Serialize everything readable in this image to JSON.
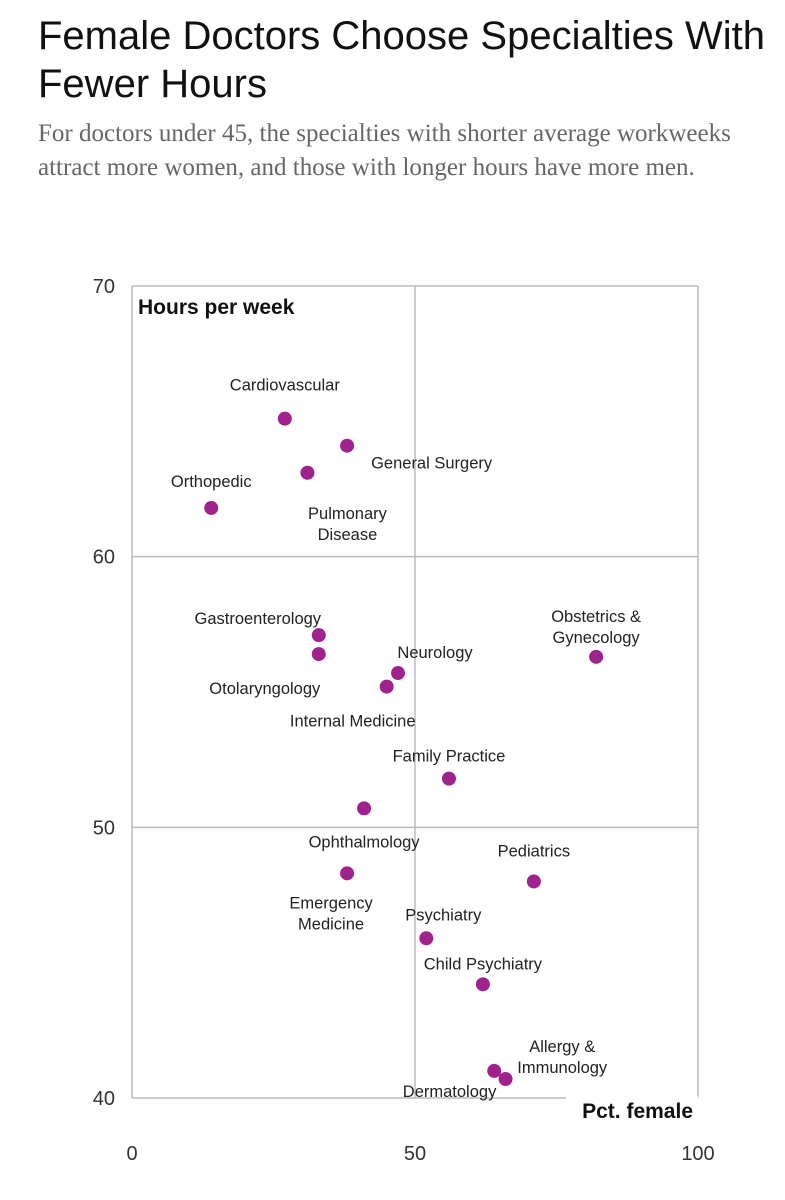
{
  "header": {
    "title": "Female Doctors Choose Specialties With Fewer Hours",
    "subtitle": "For doctors under 45, the specialties with shorter average workweeks attract more women, and those with longer hours have more men."
  },
  "chart_data": {
    "type": "scatter",
    "xlabel": "Pct. female",
    "ylabel": "Hours per week",
    "xlim": [
      0,
      100
    ],
    "ylim": [
      40,
      70
    ],
    "xticks": [
      0,
      50,
      100
    ],
    "yticks": [
      40,
      50,
      60,
      70
    ],
    "grid": true,
    "point_color": "#a0228c",
    "points": [
      {
        "label": "Cardiovascular",
        "x": 27,
        "y": 65.1
      },
      {
        "label": "General Surgery",
        "x": 38,
        "y": 64.1
      },
      {
        "label": "Pulmonary Disease",
        "x": 31,
        "y": 63.1
      },
      {
        "label": "Orthopedic",
        "x": 14,
        "y": 61.8
      },
      {
        "label": "Gastroenterology",
        "x": 33,
        "y": 57.1
      },
      {
        "label": "Otolaryngology",
        "x": 33,
        "y": 56.4
      },
      {
        "label": "Neurology",
        "x": 47,
        "y": 55.7
      },
      {
        "label": "Internal Medicine",
        "x": 45,
        "y": 55.2
      },
      {
        "label": "Obstetrics & Gynecology",
        "x": 82,
        "y": 56.3
      },
      {
        "label": "Family Practice",
        "x": 56,
        "y": 51.8
      },
      {
        "label": "Ophthalmology",
        "x": 41,
        "y": 50.7
      },
      {
        "label": "Emergency Medicine",
        "x": 38,
        "y": 48.3
      },
      {
        "label": "Pediatrics",
        "x": 71,
        "y": 48.0
      },
      {
        "label": "Psychiatry",
        "x": 52,
        "y": 45.9
      },
      {
        "label": "Child Psychiatry",
        "x": 62,
        "y": 44.2
      },
      {
        "label": "Allergy & Immunology",
        "x": 64,
        "y": 41.0
      },
      {
        "label": "Dermatology",
        "x": 66,
        "y": 40.7
      }
    ]
  }
}
